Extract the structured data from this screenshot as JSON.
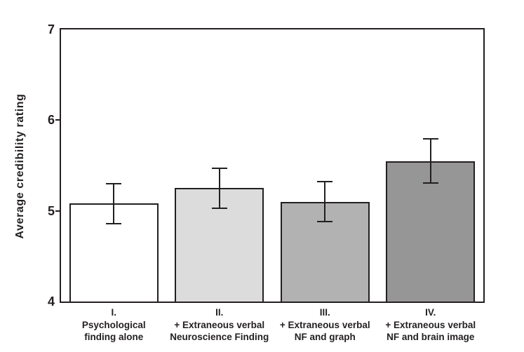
{
  "figure": {
    "background": "#ffffff",
    "axis_color": "#231f20",
    "text_color": "#231f20"
  },
  "chart_data": {
    "type": "bar",
    "title": "",
    "xlabel": "",
    "ylabel": "Average credibility rating",
    "ylim": [
      4,
      7
    ],
    "yticks": [
      "4",
      "5",
      "6",
      "7"
    ],
    "grid": false,
    "legend": "none",
    "categories": [
      {
        "numeral": "I.",
        "lines": [
          "Psychological",
          "finding alone"
        ]
      },
      {
        "numeral": "II.",
        "lines": [
          "+ Extraneous verbal",
          "Neuroscience Finding"
        ]
      },
      {
        "numeral": "III.",
        "lines": [
          "+ Extraneous verbal",
          "NF and graph"
        ]
      },
      {
        "numeral": "IV.",
        "lines": [
          "+ Extraneous verbal",
          "NF and brain image"
        ]
      }
    ],
    "values": [
      5.08,
      5.25,
      5.1,
      5.55
    ],
    "errors": [
      0.22,
      0.22,
      0.22,
      0.24
    ],
    "bar_colors": [
      "#ffffff",
      "#dcdcdc",
      "#b2b2b2",
      "#969696"
    ],
    "bar_border_color": "#231f20"
  }
}
